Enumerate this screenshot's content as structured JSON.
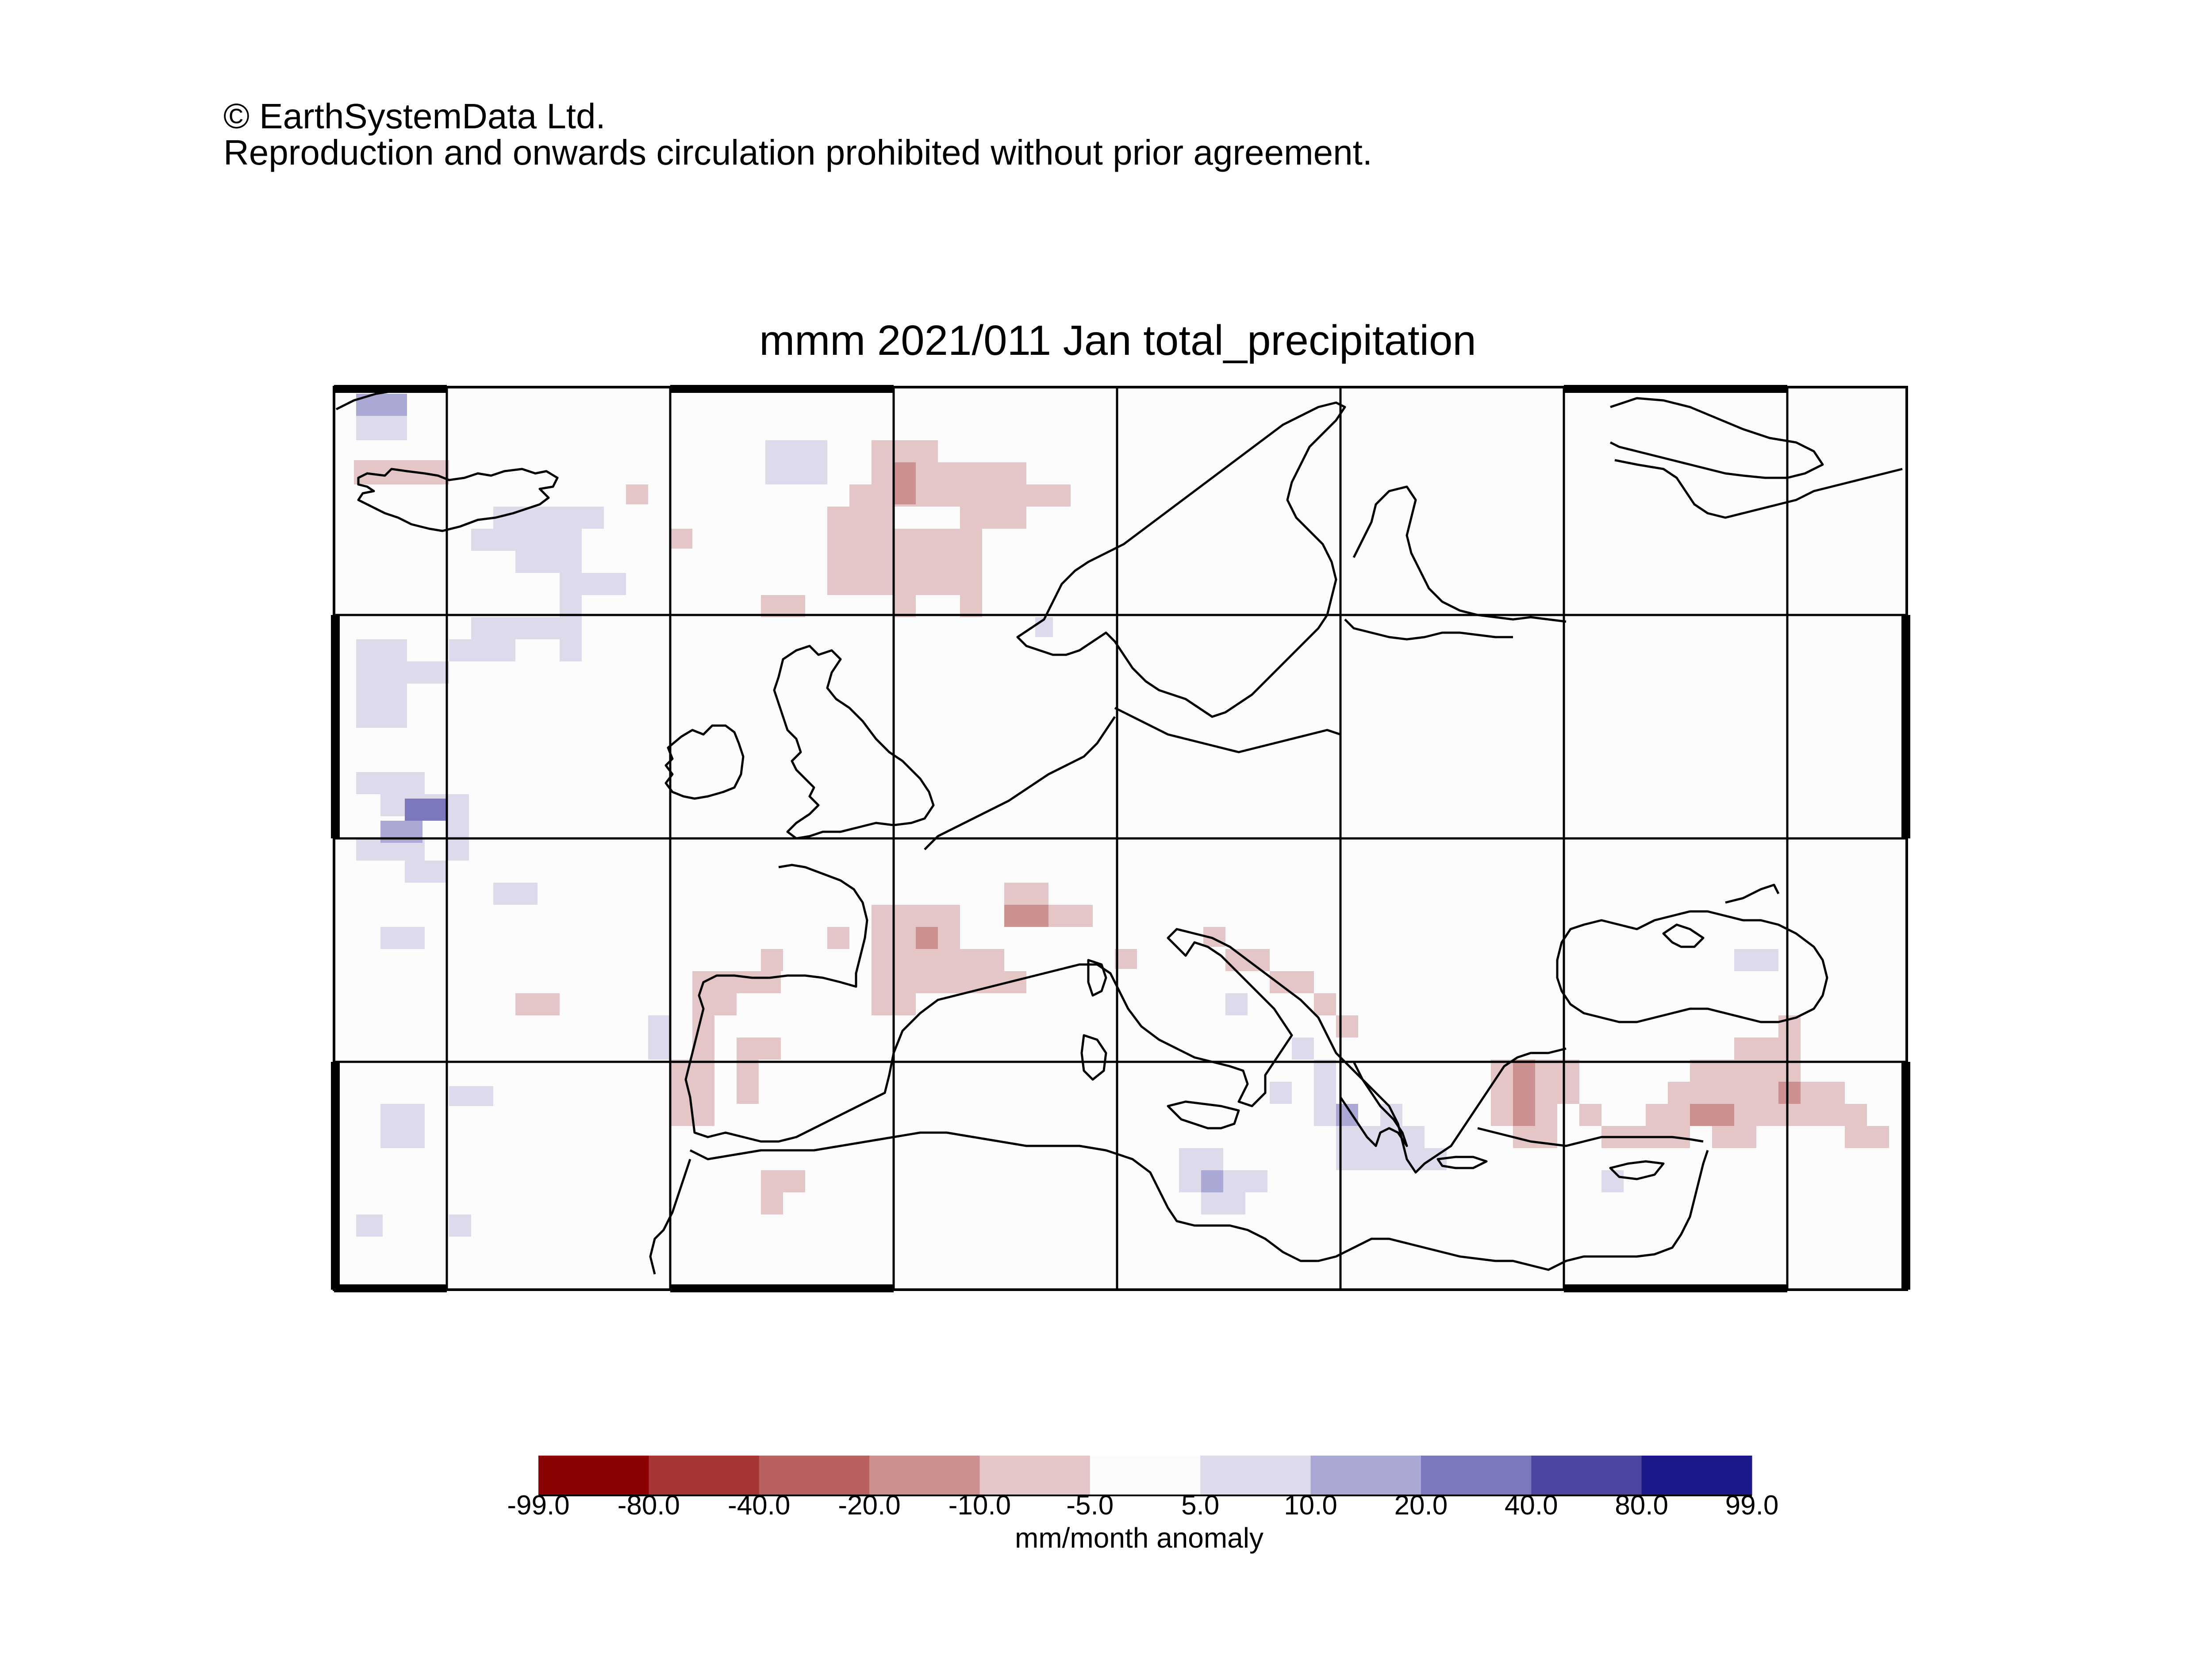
{
  "copyright": {
    "line1": "© EarthSystemData Ltd.",
    "line2": "Reproduction and onwards circulation prohibited without prior agreement."
  },
  "map": {
    "title": "mmm 2021/011 Jan total_precipitation",
    "region": "Europe / Mediterranean",
    "lon_range": [
      -50,
      0.1
    ],
    "gridline_spacing_deg": 10,
    "gridlines": true,
    "coastline_color": "#000000"
  },
  "colorbar": {
    "units": "mm/month anomaly",
    "tick_labels": [
      "-99.0",
      "-80.0",
      "-40.0",
      "-20.0",
      "-10.0",
      "-5.0",
      "5.0",
      "10.0",
      "20.0",
      "40.0",
      "80.0",
      "99.0"
    ],
    "colors": [
      "#8b0000",
      "#a83434",
      "#b96060",
      "#cc9090",
      "#e4c6c6",
      "#fcfcfc",
      "#dcdaeb",
      "#aaa8d4",
      "#7b78bc",
      "#4b47a0",
      "#1a188a"
    ]
  },
  "anomaly_cells_note": "",
  "anomaly_cells": [
    {
      "lon": -27.5,
      "lat": 69.5,
      "cls": 7
    },
    {
      "lon": -26.5,
      "lat": 69.5,
      "cls": 7
    },
    {
      "lon": -27.5,
      "lat": 68.5,
      "cls": 6
    },
    {
      "lon": -26.5,
      "lat": 68.5,
      "cls": 6
    },
    {
      "lon": -27.5,
      "lat": 66.5,
      "cls": 4
    },
    {
      "lon": -26.5,
      "lat": 66.5,
      "cls": 4
    },
    {
      "lon": -25.5,
      "lat": 66.5,
      "cls": 4
    },
    {
      "lon": -24.5,
      "lat": 66.5,
      "cls": 4
    },
    {
      "lon": -21.5,
      "lat": 64.5,
      "cls": 6
    },
    {
      "lon": -20.5,
      "lat": 64.5,
      "cls": 6
    },
    {
      "lon": -19.5,
      "lat": 64.5,
      "cls": 6
    },
    {
      "lon": -18.5,
      "lat": 64.5,
      "cls": 6
    },
    {
      "lon": -17.5,
      "lat": 64.5,
      "cls": 6
    },
    {
      "lon": -20.5,
      "lat": 63.5,
      "cls": 6
    },
    {
      "lon": -19.5,
      "lat": 63.5,
      "cls": 6
    },
    {
      "lon": -18.5,
      "lat": 63.5,
      "cls": 6
    },
    {
      "lon": -17.5,
      "lat": 63.5,
      "cls": 6
    },
    {
      "lon": -17.5,
      "lat": 62.5,
      "cls": 6
    },
    {
      "lon": -16.5,
      "lat": 62.5,
      "cls": 6
    },
    {
      "lon": -15.5,
      "lat": 62.5,
      "cls": 6
    },
    {
      "lon": -23.5,
      "lat": 60.5,
      "cls": 6
    },
    {
      "lon": -22.5,
      "lat": 60.5,
      "cls": 6
    },
    {
      "lon": -20.5,
      "lat": 60.5,
      "cls": 6
    },
    {
      "lon": -19.5,
      "lat": 60.5,
      "cls": 6
    },
    {
      "lon": -21.5,
      "lat": 61.5,
      "cls": 6
    },
    {
      "lon": -20.5,
      "lat": 61.5,
      "cls": 6
    },
    {
      "lon": -17.5,
      "lat": 61.5,
      "cls": 6
    },
    {
      "lon": -17.5,
      "lat": 60.5,
      "cls": 6
    },
    {
      "lon": -27.5,
      "lat": 59.5,
      "cls": 6
    },
    {
      "lon": -26.5,
      "lat": 59.5,
      "cls": 6
    },
    {
      "lon": -27.5,
      "lat": 58.5,
      "cls": 6
    },
    {
      "lon": -26.5,
      "lat": 58.5,
      "cls": 6
    },
    {
      "lon": -25.5,
      "lat": 58.5,
      "cls": 6
    },
    {
      "lon": -27.5,
      "lat": 57.5,
      "cls": 6
    },
    {
      "lon": -26.5,
      "lat": 57.5,
      "cls": 6
    },
    {
      "lon": -25.5,
      "lat": 57.5,
      "cls": 6
    },
    {
      "lon": -24.5,
      "lat": 58.5,
      "cls": 6
    },
    {
      "lon": -27.5,
      "lat": 55.5,
      "cls": 6
    },
    {
      "lon": -26.5,
      "lat": 55.5,
      "cls": 6
    },
    {
      "lon": -26.5,
      "lat": 54.5,
      "cls": 7
    },
    {
      "lon": -25.5,
      "lat": 54.5,
      "cls": 7
    },
    {
      "lon": -26.5,
      "lat": 53.5,
      "cls": 7
    },
    {
      "lon": -25.5,
      "lat": 53.5,
      "cls": 7
    },
    {
      "lon": -27.5,
      "lat": 53.5,
      "cls": 6
    },
    {
      "lon": -24.5,
      "lat": 54.5,
      "cls": 6
    },
    {
      "lon": -24.5,
      "lat": 53.5,
      "cls": 6
    },
    {
      "lon": -24.5,
      "lat": 52.5,
      "cls": 6
    },
    {
      "lon": -25.5,
      "lat": 52.5,
      "cls": 6
    },
    {
      "lon": -21.5,
      "lat": 52.5,
      "cls": 6
    },
    {
      "lon": -20.5,
      "lat": 52.5,
      "cls": 6
    },
    {
      "lon": -26.5,
      "lat": 50.5,
      "cls": 6
    },
    {
      "lon": -25.5,
      "lat": 50.5,
      "cls": 6
    },
    {
      "lon": -21.5,
      "lat": 48.5,
      "cls": 4
    },
    {
      "lon": -20.5,
      "lat": 48.5,
      "cls": 4
    },
    {
      "lon": -26.5,
      "lat": 46.5,
      "cls": 4
    },
    {
      "lon": -26.5,
      "lat": 45.5,
      "cls": 4
    },
    {
      "lon": -24.5,
      "lat": 44.5,
      "cls": 6
    },
    {
      "lon": -23.5,
      "lat": 44.5,
      "cls": 6
    },
    {
      "lon": -27.5,
      "lat": 42.5,
      "cls": 6
    },
    {
      "lon": -26.5,
      "lat": 43.5,
      "cls": 6
    },
    {
      "lon": -26.5,
      "lat": 43.0,
      "cls": 6
    }
  ]
}
